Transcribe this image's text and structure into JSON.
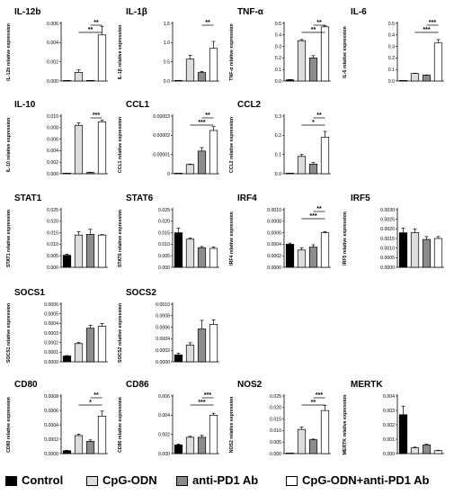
{
  "legend": [
    {
      "label": "Control",
      "color": "#000000"
    },
    {
      "label": "CpG-ODN",
      "color": "#dddddd"
    },
    {
      "label": "anti-PD1 Ab",
      "color": "#8c8c8c"
    },
    {
      "label": "CpG-ODN+anti-PD1 Ab",
      "color": "#ffffff"
    }
  ],
  "chart_data": [
    {
      "type": "bar",
      "title": "IL-12b",
      "ylabel": "IL-12b relative expression",
      "categories": [
        "Control",
        "CpG-ODN",
        "anti-PD1 Ab",
        "CpG-ODN+anti-PD1 Ab"
      ],
      "values": [
        0.0,
        0.0009,
        2e-05,
        0.0048
      ],
      "errors": [
        0,
        0.00025,
        0,
        0.0009
      ],
      "ylim": [
        0,
        0.006
      ],
      "yticks": [
        "0.000",
        "0.002",
        "0.004",
        "0.006"
      ],
      "significance": [
        {
          "from": 1,
          "to": 3,
          "label": "**"
        },
        {
          "from": 2,
          "to": 3,
          "label": "**"
        }
      ]
    },
    {
      "type": "bar",
      "title": "IL-1β",
      "ylabel": "IL-1β relative expression",
      "categories": [
        "Control",
        "CpG-ODN",
        "anti-PD1 Ab",
        "CpG-ODN+anti-PD1 Ab"
      ],
      "values": [
        0.0,
        0.57,
        0.22,
        0.85
      ],
      "errors": [
        0,
        0.1,
        0.03,
        0.18
      ],
      "ylim": [
        0,
        1.5
      ],
      "yticks": [
        "0.0",
        "0.5",
        "1.0",
        "1.5"
      ],
      "significance": [
        {
          "from": 2,
          "to": 3,
          "label": "**"
        }
      ]
    },
    {
      "type": "bar",
      "title": "TNF-α",
      "ylabel": "TNF-α relative expression",
      "categories": [
        "Control",
        "CpG-ODN",
        "anti-PD1 Ab",
        "CpG-ODN+anti-PD1 Ab"
      ],
      "values": [
        0.01,
        0.35,
        0.2,
        0.47
      ],
      "errors": [
        0.003,
        0.01,
        0.02,
        0.01
      ],
      "ylim": [
        0,
        0.5
      ],
      "yticks": [
        "0.0",
        "0.1",
        "0.2",
        "0.3",
        "0.4",
        "0.5"
      ],
      "significance": [
        {
          "from": 1,
          "to": 3,
          "label": "**"
        },
        {
          "from": 2,
          "to": 3,
          "label": "**"
        }
      ]
    },
    {
      "type": "bar",
      "title": "IL-6",
      "ylabel": "IL-6 relative expression",
      "categories": [
        "Control",
        "CpG-ODN",
        "anti-PD1 Ab",
        "CpG-ODN+anti-PD1 Ab"
      ],
      "values": [
        0.0,
        0.065,
        0.05,
        0.33
      ],
      "errors": [
        0,
        0.002,
        0.003,
        0.03
      ],
      "ylim": [
        0,
        0.5
      ],
      "yticks": [
        "0.0",
        "0.1",
        "0.2",
        "0.3",
        "0.4",
        "0.5"
      ],
      "significance": [
        {
          "from": 1,
          "to": 3,
          "label": "***"
        },
        {
          "from": 2,
          "to": 3,
          "label": "***"
        }
      ]
    },
    {
      "type": "bar",
      "title": "IL-10",
      "ylabel": "IL-10 relative expression",
      "categories": [
        "Control",
        "CpG-ODN",
        "anti-PD1 Ab",
        "CpG-ODN+anti-PD1 Ab"
      ],
      "values": [
        0.0,
        0.0084,
        0.0002,
        0.009
      ],
      "errors": [
        0,
        0.0004,
        5e-05,
        0.0003
      ],
      "ylim": [
        0,
        0.01
      ],
      "yticks": [
        "0.000",
        "0.002",
        "0.004",
        "0.006",
        "0.008",
        "0.010"
      ],
      "significance": [
        {
          "from": 2,
          "to": 3,
          "label": "***"
        }
      ]
    },
    {
      "type": "bar",
      "title": "CCL1",
      "ylabel": "CCL1 relative expression",
      "categories": [
        "Control",
        "CpG-ODN",
        "anti-PD1 Ab",
        "CpG-ODN+anti-PD1 Ab"
      ],
      "values": [
        0.0,
        4.8e-06,
        1.18e-05,
        2.25e-05
      ],
      "errors": [
        0,
        2e-07,
        1.8e-06,
        2e-06
      ],
      "ylim": [
        0,
        3e-05
      ],
      "yticks": [
        "0",
        "0.00001",
        "0.00002",
        "0.00003"
      ],
      "significance": [
        {
          "from": 1,
          "to": 3,
          "label": "***"
        },
        {
          "from": 2,
          "to": 3,
          "label": "**"
        }
      ]
    },
    {
      "type": "bar",
      "title": "CCL2",
      "ylabel": "CCL2 relative expression",
      "categories": [
        "Control",
        "CpG-ODN",
        "anti-PD1 Ab",
        "CpG-ODN+anti-PD1 Ab"
      ],
      "values": [
        0.0,
        0.09,
        0.05,
        0.19
      ],
      "errors": [
        0,
        0.01,
        0.008,
        0.03
      ],
      "ylim": [
        0,
        0.3
      ],
      "yticks": [
        "0.0",
        "0.1",
        "0.2",
        "0.3"
      ],
      "significance": [
        {
          "from": 1,
          "to": 3,
          "label": "*"
        },
        {
          "from": 2,
          "to": 3,
          "label": "**"
        }
      ]
    },
    {
      "type": "bar",
      "title": "STAT1",
      "ylabel": "STAT1 relative expression",
      "categories": [
        "Control",
        "CpG-ODN",
        "anti-PD1 Ab",
        "CpG-ODN+anti-PD1 Ab"
      ],
      "values": [
        0.0052,
        0.014,
        0.0143,
        0.014
      ],
      "errors": [
        0.0005,
        0.0015,
        0.0022,
        0.0002
      ],
      "ylim": [
        0,
        0.025
      ],
      "yticks": [
        "0.000",
        "0.005",
        "0.010",
        "0.015",
        "0.020",
        "0.025"
      ],
      "significance": []
    },
    {
      "type": "bar",
      "title": "STAT6",
      "ylabel": "STAT6 relative expression",
      "categories": [
        "Control",
        "CpG-ODN",
        "anti-PD1 Ab",
        "CpG-ODN+anti-PD1 Ab"
      ],
      "values": [
        0.015,
        0.0122,
        0.0085,
        0.0082
      ],
      "errors": [
        0.002,
        0.0005,
        0.0005,
        0.0006
      ],
      "ylim": [
        0,
        0.025
      ],
      "yticks": [
        "0.000",
        "0.005",
        "0.010",
        "0.015",
        "0.020",
        "0.025"
      ],
      "significance": []
    },
    {
      "type": "bar",
      "title": "IRF4",
      "ylabel": "IRF4 relative expression",
      "categories": [
        "Control",
        "CpG-ODN",
        "anti-PD1 Ab",
        "CpG-ODN+anti-PD1 Ab"
      ],
      "values": [
        0.0004,
        0.0003,
        0.00035,
        0.0006
      ],
      "errors": [
        2e-05,
        4e-05,
        4e-05,
        2e-05
      ],
      "ylim": [
        0,
        0.001
      ],
      "yticks": [
        "0.0000",
        "0.0002",
        "0.0004",
        "0.0006",
        "0.0008",
        "0.0010"
      ],
      "significance": [
        {
          "from": 1,
          "to": 3,
          "label": "***"
        },
        {
          "from": 2,
          "to": 3,
          "label": "**"
        }
      ]
    },
    {
      "type": "bar",
      "title": "IRF5",
      "ylabel": "IRF5 relative expression",
      "categories": [
        "Control",
        "CpG-ODN",
        "anti-PD1 Ab",
        "CpG-ODN+anti-PD1 Ab"
      ],
      "values": [
        0.0018,
        0.0018,
        0.00145,
        0.0015
      ],
      "errors": [
        0.00025,
        0.0002,
        0.00015,
        0.0001
      ],
      "ylim": [
        0,
        0.003
      ],
      "yticks": [
        "0.0000",
        "0.0005",
        "0.0010",
        "0.0015",
        "0.0020",
        "0.0025",
        "0.0030"
      ],
      "significance": []
    },
    {
      "type": "bar",
      "title": "SOCS1",
      "ylabel": "SOCS1 relative expression",
      "categories": [
        "Control",
        "CpG-ODN",
        "anti-PD1 Ab",
        "CpG-ODN+anti-PD1 Ab"
      ],
      "values": [
        6e-05,
        0.00019,
        0.00035,
        0.00037
      ],
      "errors": [
        5e-06,
        1e-05,
        3e-05,
        3e-05
      ],
      "ylim": [
        0,
        0.0006
      ],
      "yticks": [
        "0.0000",
        "0.0001",
        "0.0002",
        "0.0003",
        "0.0004",
        "0.0005",
        "0.0006"
      ],
      "significance": []
    },
    {
      "type": "bar",
      "title": "SOCS2",
      "ylabel": "SOCS2 relative expression",
      "categories": [
        "Control",
        "CpG-ODN",
        "anti-PD1 Ab",
        "CpG-ODN+anti-PD1 Ab"
      ],
      "values": [
        0.00012,
        0.00029,
        0.00057,
        0.00065
      ],
      "errors": [
        3e-05,
        4e-05,
        0.00015,
        8e-05
      ],
      "ylim": [
        0,
        0.001
      ],
      "yticks": [
        "0.0000",
        "0.0002",
        "0.0004",
        "0.0006",
        "0.0008",
        "0.0010"
      ],
      "significance": []
    },
    {
      "type": "bar",
      "title": "CD80",
      "ylabel": "CD80 relative expression",
      "categories": [
        "Control",
        "CpG-ODN",
        "anti-PD1 Ab",
        "CpG-ODN+anti-PD1 Ab"
      ],
      "values": [
        4e-05,
        0.00025,
        0.00017,
        0.00052
      ],
      "errors": [
        5e-06,
        2e-05,
        2e-05,
        7e-05
      ],
      "ylim": [
        0,
        0.0008
      ],
      "yticks": [
        "0.0000",
        "0.0002",
        "0.0004",
        "0.0006",
        "0.0008"
      ],
      "significance": [
        {
          "from": 1,
          "to": 3,
          "label": "*"
        },
        {
          "from": 2,
          "to": 3,
          "label": "**"
        }
      ]
    },
    {
      "type": "bar",
      "title": "CD86",
      "ylabel": "CD86 relative expression",
      "categories": [
        "Control",
        "CpG-ODN",
        "anti-PD1 Ab",
        "CpG-ODN+anti-PD1 Ab"
      ],
      "values": [
        0.0009,
        0.0017,
        0.0017,
        0.004
      ],
      "errors": [
        0.0001,
        0.0001,
        0.0002,
        0.0002
      ],
      "ylim": [
        0,
        0.006
      ],
      "yticks": [
        "0.000",
        "0.002",
        "0.004",
        "0.006"
      ],
      "significance": [
        {
          "from": 1,
          "to": 3,
          "label": "***"
        },
        {
          "from": 2,
          "to": 3,
          "label": "***"
        }
      ]
    },
    {
      "type": "bar",
      "title": "NOS2",
      "ylabel": "NOS2 relative expression",
      "categories": [
        "Control",
        "CpG-ODN",
        "anti-PD1 Ab",
        "CpG-ODN+anti-PD1 Ab"
      ],
      "values": [
        0.0,
        0.0105,
        0.006,
        0.0187
      ],
      "errors": [
        0,
        0.001,
        0.0003,
        0.0022
      ],
      "ylim": [
        0,
        0.025
      ],
      "yticks": [
        "0.000",
        "0.005",
        "0.010",
        "0.015",
        "0.020",
        "0.025"
      ],
      "significance": [
        {
          "from": 1,
          "to": 3,
          "label": "**"
        },
        {
          "from": 2,
          "to": 3,
          "label": "***"
        }
      ]
    },
    {
      "type": "bar",
      "title": "MERTK",
      "ylabel": "MERTK relative expression",
      "categories": [
        "Control",
        "CpG-ODN",
        "anti-PD1 Ab",
        "CpG-ODN+anti-PD1 Ab"
      ],
      "values": [
        0.0027,
        0.0004,
        0.0006,
        0.0002
      ],
      "errors": [
        0.0006,
        5e-05,
        5e-05,
        3e-05
      ],
      "ylim": [
        0,
        0.004
      ],
      "yticks": [
        "0.000",
        "0.001",
        "0.002",
        "0.003",
        "0.004"
      ],
      "significance": []
    }
  ]
}
